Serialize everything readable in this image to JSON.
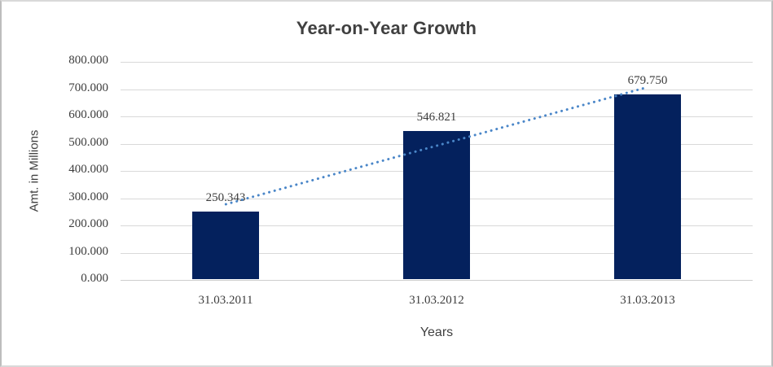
{
  "chart_data": {
    "type": "bar",
    "title": "Year-on-Year Growth",
    "xlabel": "Years",
    "ylabel": "Amt. in Millions",
    "categories": [
      "31.03.2011",
      "31.03.2012",
      "31.03.2013"
    ],
    "values": [
      250.343,
      546.821,
      679.75
    ],
    "value_labels": [
      "250.343",
      "546.821",
      "679.750"
    ],
    "y_tick_labels": [
      "800.000",
      "700.000",
      "600.000",
      "500.000",
      "400.000",
      "300.000",
      "200.000",
      "100.000",
      "0.000"
    ],
    "ylim": [
      0,
      800
    ],
    "grid": true,
    "legend_position": "none",
    "trendline": {
      "type": "linear",
      "style": "dotted"
    },
    "colors": {
      "bar": "#04215d",
      "trendline": "#4a86c8",
      "gridline": "#d9d9d9",
      "axis_line": "#cdcdcd",
      "text": "#404040",
      "frame_border": "#d9d9d9"
    }
  }
}
